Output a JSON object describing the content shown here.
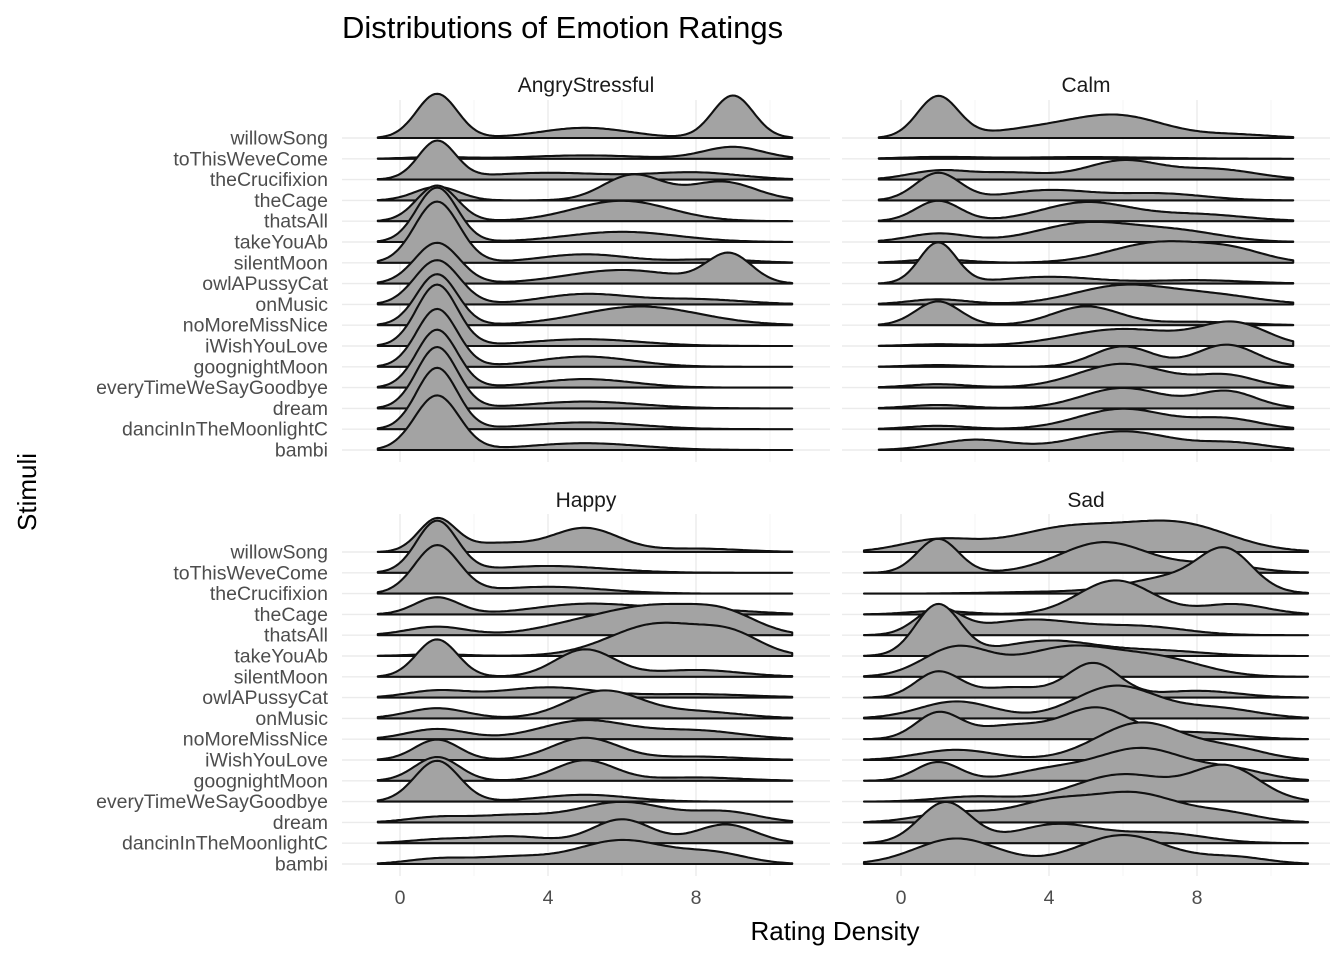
{
  "chart_data": {
    "type": "ridgeline",
    "title": "Distributions of Emotion Ratings",
    "xlabel": "Rating Density",
    "ylabel": "Stimuli",
    "xlim": [
      -0.6,
      10.6
    ],
    "xticks": [
      0,
      4,
      8
    ],
    "grid": true,
    "fill_color": "#a3a3a3",
    "line_color": "#111111",
    "stimuli": [
      "willowSong",
      "toThisWeveCome",
      "theCrucifixion",
      "theCage",
      "thatsAll",
      "takeYouAb",
      "silentMoon",
      "owlAPussyCat",
      "onMusic",
      "noMoreMissNice",
      "iWishYouLove",
      "goognightMoon",
      "everyTimeWeSayGoodbye",
      "dream",
      "dancinInTheMoonlightC",
      "bambi"
    ],
    "panels": [
      {
        "name": "AngryStressful",
        "range": [
          -0.6,
          10.6
        ],
        "ridges": {
          "willowSong": [
            [
              1,
              1.3,
              0.55
            ],
            [
              5,
              0.3,
              1.2
            ],
            [
              9,
              1.25,
              0.55
            ]
          ],
          "toThisWeveCome": [
            [
              1,
              0.05,
              0.8
            ],
            [
              5,
              0.1,
              1.5
            ],
            [
              9,
              0.35,
              0.8
            ]
          ],
          "theCrucifixion": [
            [
              1,
              1.1,
              0.5
            ],
            [
              4,
              0.2,
              1.8
            ],
            [
              8,
              0.2,
              1.2
            ]
          ],
          "theCage": [
            [
              1,
              0.4,
              0.6
            ],
            [
              6.3,
              0.75,
              0.8
            ],
            [
              8.7,
              0.55,
              0.9
            ]
          ],
          "thatsAll": [
            [
              1,
              1.05,
              0.55
            ],
            [
              6,
              0.6,
              1.3
            ]
          ],
          "takeYouAb": [
            [
              1,
              1.6,
              0.55
            ],
            [
              6,
              0.3,
              1.5
            ]
          ],
          "silentMoon": [
            [
              1,
              1.8,
              0.6
            ],
            [
              5,
              0.25,
              1.2
            ],
            [
              8.5,
              0.1,
              1
            ]
          ],
          "owlAPussyCat": [
            [
              1,
              1.2,
              0.6
            ],
            [
              6,
              0.4,
              1.5
            ],
            [
              8.9,
              0.85,
              0.6
            ]
          ],
          "onMusic": [
            [
              1,
              1.3,
              0.6
            ],
            [
              5,
              0.3,
              1.2
            ],
            [
              8,
              0.15,
              1.3
            ]
          ],
          "noMoreMissNice": [
            [
              1,
              1.5,
              0.55
            ],
            [
              6.5,
              0.55,
              1.6
            ]
          ],
          "iWishYouLove": [
            [
              1,
              1.8,
              0.55
            ],
            [
              5,
              0.2,
              1.5
            ]
          ],
          "goognightMoon": [
            [
              1,
              1.7,
              0.55
            ],
            [
              5,
              0.3,
              1.3
            ]
          ],
          "everyTimeWeSayGoodbye": [
            [
              1,
              1.7,
              0.55
            ],
            [
              5,
              0.25,
              1.3
            ]
          ],
          "dream": [
            [
              1,
              1.8,
              0.55
            ],
            [
              5,
              0.2,
              1.5
            ]
          ],
          "dancinInTheMoonlightC": [
            [
              1,
              1.8,
              0.55
            ],
            [
              5,
              0.2,
              1.5
            ]
          ],
          "bambi": [
            [
              1,
              1.6,
              0.6
            ],
            [
              5,
              0.2,
              1.5
            ]
          ]
        }
      },
      {
        "name": "Calm",
        "range": [
          -0.6,
          10.6
        ],
        "ridges": {
          "willowSong": [
            [
              1,
              1.2,
              0.55
            ],
            [
              4,
              0.3,
              1.5
            ],
            [
              6,
              0.55,
              1.2
            ],
            [
              9,
              0.1,
              1
            ]
          ],
          "toThisWeveCome": [
            [
              1,
              0.05,
              1
            ],
            [
              5,
              0.05,
              2
            ]
          ],
          "theCrucifixion": [
            [
              1,
              0.25,
              0.8
            ],
            [
              3,
              0.2,
              1
            ],
            [
              6,
              0.55,
              1
            ],
            [
              8.5,
              0.3,
              1.1
            ]
          ],
          "theCage": [
            [
              1,
              0.8,
              0.6
            ],
            [
              4,
              0.3,
              1.2
            ],
            [
              7,
              0.2,
              1.2
            ]
          ],
          "thatsAll": [
            [
              1,
              0.6,
              0.6
            ],
            [
              5,
              0.55,
              1.2
            ],
            [
              8,
              0.2,
              1.3
            ]
          ],
          "takeYouAb": [
            [
              1,
              0.25,
              0.8
            ],
            [
              5,
              0.55,
              1.3
            ],
            [
              7.5,
              0.3,
              1.2
            ]
          ],
          "silentMoon": [
            [
              1,
              0.1,
              0.8
            ],
            [
              7,
              0.6,
              1.3
            ],
            [
              9,
              0.3,
              0.9
            ]
          ],
          "owlAPussyCat": [
            [
              1,
              1.2,
              0.5
            ],
            [
              4,
              0.2,
              1.3
            ],
            [
              8,
              0.1,
              1.3
            ]
          ],
          "onMusic": [
            [
              1,
              0.15,
              0.8
            ],
            [
              6,
              0.55,
              1.3
            ],
            [
              8.5,
              0.25,
              1.2
            ]
          ],
          "noMoreMissNice": [
            [
              1,
              0.7,
              0.6
            ],
            [
              5,
              0.55,
              0.9
            ],
            [
              8,
              0.1,
              1.2
            ]
          ],
          "iWishYouLove": [
            [
              1,
              0.05,
              0.8
            ],
            [
              6,
              0.5,
              1.5
            ],
            [
              9,
              0.65,
              0.9
            ]
          ],
          "goognightMoon": [
            [
              1,
              0.05,
              0.8
            ],
            [
              6,
              0.6,
              0.8
            ],
            [
              8.8,
              0.65,
              0.8
            ]
          ],
          "everyTimeWeSayGoodbye": [
            [
              1,
              0.1,
              0.8
            ],
            [
              6,
              0.7,
              1.2
            ],
            [
              8.8,
              0.35,
              0.8
            ]
          ],
          "dream": [
            [
              1,
              0.1,
              0.8
            ],
            [
              6,
              0.6,
              1.1
            ],
            [
              8.8,
              0.5,
              0.8
            ]
          ],
          "dancinInTheMoonlightC": [
            [
              1,
              0.1,
              0.8
            ],
            [
              6,
              0.6,
              1.2
            ],
            [
              8.8,
              0.3,
              0.9
            ]
          ],
          "bambi": [
            [
              2,
              0.3,
              1
            ],
            [
              6,
              0.55,
              1.3
            ],
            [
              9,
              0.2,
              0.9
            ]
          ]
        }
      },
      {
        "name": "Happy",
        "range": [
          -0.6,
          10.6
        ],
        "ridges": {
          "willowSong": [
            [
              1,
              0.95,
              0.5
            ],
            [
              2.6,
              0.25,
              0.9
            ],
            [
              5,
              0.7,
              0.9
            ],
            [
              8,
              0.1,
              1.2
            ]
          ],
          "toThisWeveCome": [
            [
              1,
              1.5,
              0.55
            ],
            [
              4,
              0.2,
              1.6
            ]
          ],
          "theCrucifixion": [
            [
              1,
              1.4,
              0.6
            ],
            [
              4,
              0.2,
              1.5
            ]
          ],
          "theCage": [
            [
              1,
              0.5,
              0.6
            ],
            [
              5,
              0.3,
              1.4
            ],
            [
              8,
              0.15,
              1.4
            ]
          ],
          "thatsAll": [
            [
              1,
              0.25,
              0.8
            ],
            [
              5,
              0.35,
              1.2
            ],
            [
              7,
              0.75,
              1.2
            ],
            [
              8.8,
              0.55,
              0.9
            ]
          ],
          "takeYouAb": [
            [
              1,
              0.05,
              0.8
            ],
            [
              7,
              0.95,
              1.3
            ],
            [
              9,
              0.5,
              0.8
            ]
          ],
          "silentMoon": [
            [
              1,
              1.1,
              0.55
            ],
            [
              5,
              0.8,
              0.8
            ],
            [
              8,
              0.2,
              1.2
            ]
          ],
          "owlAPussyCat": [
            [
              1,
              0.2,
              0.8
            ],
            [
              4,
              0.3,
              1.3
            ],
            [
              8,
              0.1,
              1.5
            ]
          ],
          "onMusic": [
            [
              1,
              0.3,
              0.8
            ],
            [
              5.5,
              0.8,
              1
            ],
            [
              8,
              0.2,
              1.2
            ]
          ],
          "noMoreMissNice": [
            [
              1,
              0.3,
              0.8
            ],
            [
              5,
              0.55,
              1.2
            ],
            [
              8,
              0.25,
              1.2
            ]
          ],
          "iWishYouLove": [
            [
              1,
              0.6,
              0.6
            ],
            [
              5,
              0.65,
              0.9
            ],
            [
              8,
              0.1,
              1.2
            ]
          ],
          "goognightMoon": [
            [
              1,
              0.7,
              0.6
            ],
            [
              5,
              0.6,
              0.8
            ],
            [
              8,
              0.1,
              1.2
            ]
          ],
          "everyTimeWeSayGoodbye": [
            [
              1,
              1.2,
              0.6
            ],
            [
              5,
              0.2,
              1.2
            ]
          ],
          "dream": [
            [
              1,
              0.15,
              0.8
            ],
            [
              3,
              0.2,
              1
            ],
            [
              6,
              0.6,
              1.2
            ],
            [
              8.8,
              0.3,
              0.9
            ]
          ],
          "dancinInTheMoonlightC": [
            [
              1,
              0.1,
              0.8
            ],
            [
              3,
              0.2,
              1
            ],
            [
              6,
              0.7,
              0.8
            ],
            [
              8.8,
              0.55,
              0.8
            ]
          ],
          "bambi": [
            [
              1,
              0.15,
              0.8
            ],
            [
              3,
              0.2,
              1
            ],
            [
              6,
              0.7,
              1.2
            ],
            [
              8.5,
              0.3,
              0.9
            ]
          ]
        }
      },
      {
        "name": "Sad",
        "range": [
          -1,
          11
        ],
        "ridges": {
          "willowSong": [
            [
              1,
              0.35,
              1
            ],
            [
              4.5,
              0.7,
              1.5
            ],
            [
              7.5,
              0.8,
              1.4
            ]
          ],
          "toThisWeveCome": [
            [
              1,
              1.0,
              0.55
            ],
            [
              5.5,
              0.9,
              1.2
            ],
            [
              8.5,
              0.25,
              1
            ]
          ],
          "theCrucifixion": [
            [
              4,
              0.05,
              1.5
            ],
            [
              7.5,
              0.5,
              1.3
            ],
            [
              8.8,
              1.05,
              0.7
            ]
          ],
          "theCage": [
            [
              1,
              0.1,
              0.8
            ],
            [
              5.8,
              1.0,
              1
            ],
            [
              9,
              0.3,
              0.9
            ]
          ],
          "thatsAll": [
            [
              1,
              0.75,
              0.6
            ],
            [
              3.5,
              0.45,
              1.3
            ],
            [
              6.5,
              0.25,
              1.2
            ]
          ],
          "takeYouAb": [
            [
              1,
              1.5,
              0.6
            ],
            [
              4,
              0.45,
              1.3
            ],
            [
              7,
              0.15,
              1.2
            ]
          ],
          "silentMoon": [
            [
              1.5,
              0.85,
              0.9
            ],
            [
              4.5,
              0.85,
              1.3
            ],
            [
              7,
              0.5,
              1.2
            ]
          ],
          "owlAPussyCat": [
            [
              1,
              0.75,
              0.6
            ],
            [
              3,
              0.3,
              0.9
            ],
            [
              5.2,
              1.0,
              0.7
            ],
            [
              8,
              0.2,
              1.1
            ]
          ],
          "onMusic": [
            [
              1.5,
              0.5,
              1
            ],
            [
              5.8,
              0.95,
              1.1
            ],
            [
              8.5,
              0.3,
              1.1
            ]
          ],
          "noMoreMissNice": [
            [
              1,
              0.75,
              0.6
            ],
            [
              3,
              0.4,
              1
            ],
            [
              5.3,
              0.9,
              0.9
            ],
            [
              8,
              0.2,
              1.1
            ]
          ],
          "iWishYouLove": [
            [
              1.5,
              0.3,
              1
            ],
            [
              6.5,
              1.1,
              1.2
            ],
            [
              9,
              0.3,
              0.9
            ]
          ],
          "goognightMoon": [
            [
              1,
              0.55,
              0.6
            ],
            [
              4,
              0.3,
              1
            ],
            [
              6.5,
              0.95,
              1.2
            ],
            [
              9,
              0.3,
              0.9
            ]
          ],
          "everyTimeWeSayGoodbye": [
            [
              2,
              0.15,
              1
            ],
            [
              6,
              0.8,
              1.3
            ],
            [
              8.8,
              1.0,
              0.9
            ]
          ],
          "dream": [
            [
              1.5,
              0.3,
              1
            ],
            [
              4,
              0.55,
              1
            ],
            [
              6.3,
              0.85,
              1.2
            ],
            [
              8.8,
              0.25,
              0.9
            ]
          ],
          "dancinInTheMoonlightC": [
            [
              1.2,
              1.2,
              0.7
            ],
            [
              4.2,
              0.55,
              1.1
            ],
            [
              7,
              0.3,
              1.2
            ]
          ],
          "bambi": [
            [
              1.5,
              0.75,
              1.1
            ],
            [
              6,
              0.85,
              1.2
            ],
            [
              9,
              0.2,
              0.9
            ]
          ]
        }
      }
    ]
  }
}
